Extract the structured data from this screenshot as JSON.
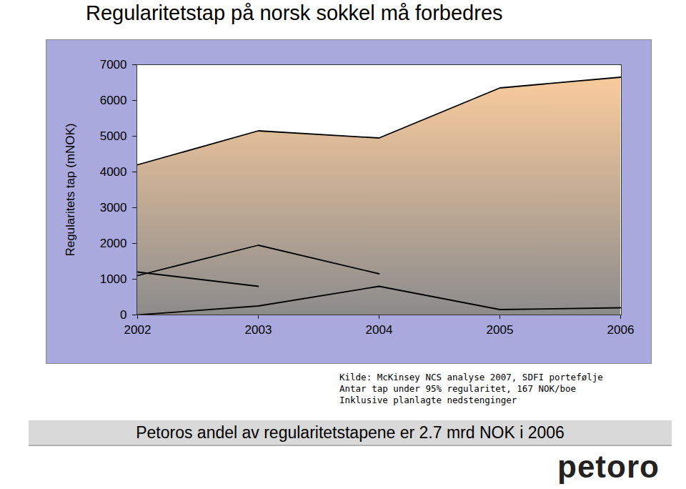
{
  "chart_data": {
    "type": "line",
    "title": "Regularitetstap på norsk sokkel må forbedres",
    "y_label": "Regularitets tap (mNOK)",
    "categories": [
      "2002",
      "2003",
      "2004",
      "2005",
      "2006"
    ],
    "series": [
      {
        "type": "area",
        "color": "#f9cb9c",
        "values": [
          4200,
          5150,
          4950,
          6350,
          6650
        ]
      },
      {
        "color": "#000000",
        "values": [
          1100,
          1950,
          1150,
          null,
          null
        ]
      },
      {
        "color": "#000000",
        "values": [
          1200,
          800,
          null,
          null,
          null
        ]
      },
      {
        "color": "#000000",
        "values": [
          0,
          250,
          800,
          150,
          200
        ]
      }
    ],
    "ylim": [
      0,
      7000
    ],
    "yticks": [
      0,
      1000,
      2000,
      3000,
      4000,
      5000,
      6000,
      7000
    ],
    "notes": [
      "Kilde: McKinsey NCS analyse 2007, SDFI portefølje",
      "Antar tap under 95% regularitet, 167 NOK/boe",
      "Inklusive planlagte nedstenginger"
    ],
    "caption": "Petoros andel av regularitetstapene er 2.7 mrd NOK i 2006",
    "logo": "petoro"
  }
}
